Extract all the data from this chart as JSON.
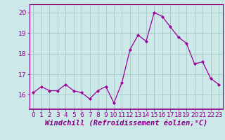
{
  "x": [
    0,
    1,
    2,
    3,
    4,
    5,
    6,
    7,
    8,
    9,
    10,
    11,
    12,
    13,
    14,
    15,
    16,
    17,
    18,
    19,
    20,
    21,
    22,
    23
  ],
  "y": [
    16.1,
    16.4,
    16.2,
    16.2,
    16.5,
    16.2,
    16.1,
    15.8,
    16.2,
    16.4,
    15.6,
    16.6,
    18.2,
    18.9,
    18.6,
    20.0,
    19.8,
    19.3,
    18.8,
    18.5,
    17.5,
    17.6,
    16.8,
    16.5
  ],
  "line_color": "#990099",
  "marker": "D",
  "marker_size": 2,
  "bg_color": "#cce8e8",
  "grid_color": "#aacccc",
  "xlabel": "Windchill (Refroidissement éolien,°C)",
  "ylim": [
    15.3,
    20.4
  ],
  "yticks": [
    16,
    17,
    18,
    19,
    20
  ],
  "xticks": [
    0,
    1,
    2,
    3,
    4,
    5,
    6,
    7,
    8,
    9,
    10,
    11,
    12,
    13,
    14,
    15,
    16,
    17,
    18,
    19,
    20,
    21,
    22,
    23
  ],
  "xlabel_fontsize": 7.5,
  "tick_fontsize": 6.5
}
